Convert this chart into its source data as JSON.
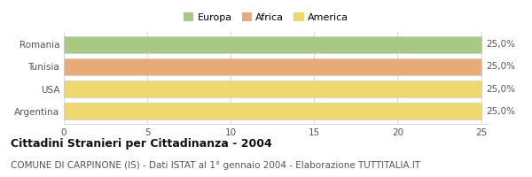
{
  "categories": [
    "Romania",
    "Tunisia",
    "USA",
    "Argentina"
  ],
  "values": [
    25,
    25,
    25,
    25
  ],
  "bar_colors": [
    "#a8c884",
    "#e8aa78",
    "#f0d870",
    "#f0d870"
  ],
  "continent_labels": [
    "Europa",
    "Africa",
    "America"
  ],
  "legend_colors": [
    "#a8c884",
    "#e8aa78",
    "#f0d870"
  ],
  "bar_labels": [
    "25,0%",
    "25,0%",
    "25,0%",
    "25,0%"
  ],
  "xlim": [
    0,
    25
  ],
  "xticks": [
    0,
    5,
    10,
    15,
    20,
    25
  ],
  "title_bold": "Cittadini Stranieri per Cittadinanza - 2004",
  "subtitle": "COMUNE DI CARPINONE (IS) - Dati ISTAT al 1° gennaio 2004 - Elaborazione TUTTITALIA.IT",
  "background_color": "#ffffff",
  "grid_color": "#cccccc",
  "bar_edge_color": "#cccccc",
  "tick_fontsize": 7.5,
  "ylabel_fontsize": 7.5,
  "label_fontsize": 7.5,
  "title_fontsize": 9,
  "subtitle_fontsize": 7.5,
  "legend_fontsize": 8
}
